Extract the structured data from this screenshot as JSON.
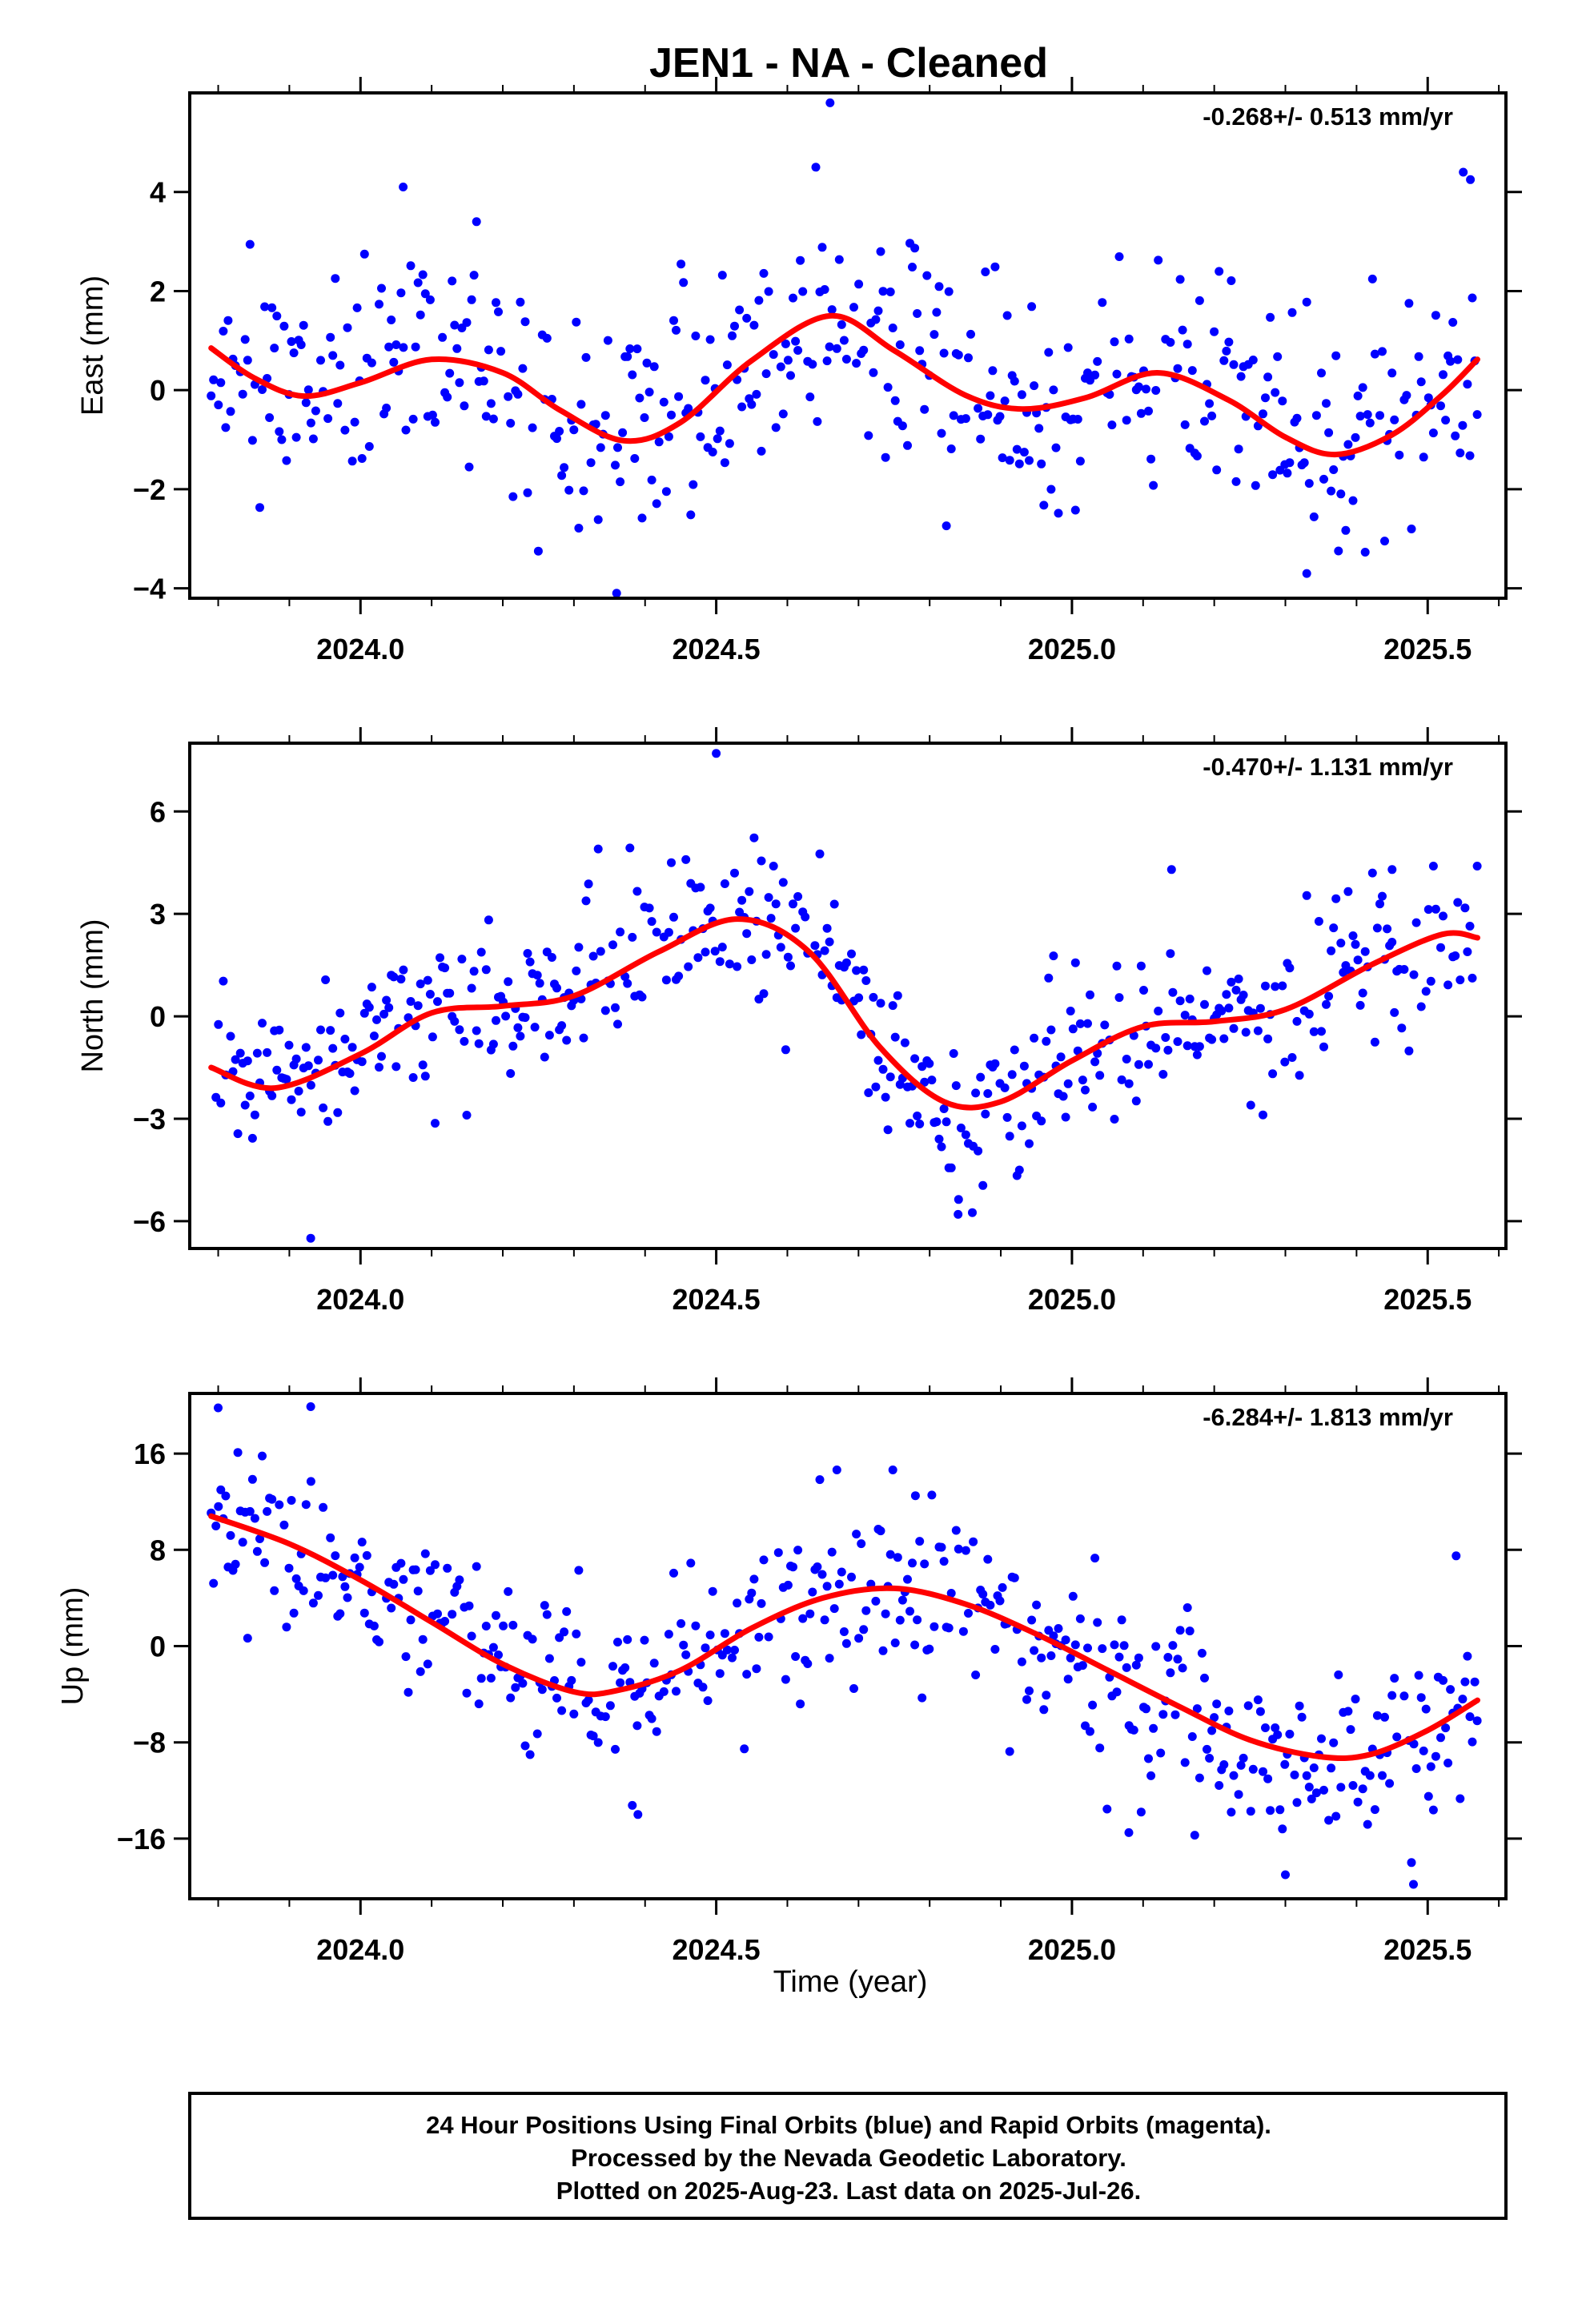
{
  "title": "JEN1  - NA - Cleaned",
  "xlabel": "Time (year)",
  "footer": {
    "lines": [
      "24 Hour Positions Using Final Orbits (blue) and Rapid Orbits (magenta).",
      "Processed by the Nevada Geodetic Laboratory.",
      "Plotted on 2025-Aug-23. Last data on 2025-Jul-26."
    ]
  },
  "colors": {
    "final_orbit_points": "#0000ff",
    "model_fit": "#ff0000",
    "frame": "#000000"
  },
  "chart_data": [
    {
      "type": "scatter",
      "panel": "east",
      "ylabel": "East (mm)",
      "rate": "-0.268+/- 0.513 mm/yr",
      "xlim": [
        2023.76,
        2025.61
      ],
      "ylim": [
        -4.2,
        6.0
      ],
      "yticks": [
        -4,
        -2,
        0,
        2,
        4
      ],
      "ytick_labels": [
        "−4",
        "−2",
        "0",
        "2",
        "4"
      ],
      "xticks": [
        2024.0,
        2024.5,
        2025.0,
        2025.5
      ],
      "xtick_labels": [
        "2024.0",
        "2024.5",
        "2025.0",
        "2025.5"
      ],
      "noise_sd": 1.1,
      "seed": 11,
      "fit": {
        "name": "model fit",
        "x": [
          2023.79,
          2023.85,
          2023.92,
          2024.0,
          2024.1,
          2024.2,
          2024.28,
          2024.37,
          2024.45,
          2024.55,
          2024.66,
          2024.75,
          2024.85,
          2024.93,
          2025.02,
          2025.12,
          2025.22,
          2025.3,
          2025.37,
          2025.45,
          2025.52,
          2025.57
        ],
        "y": [
          0.85,
          0.25,
          -0.12,
          0.15,
          0.62,
          0.35,
          -0.4,
          -1.02,
          -0.65,
          0.6,
          1.5,
          0.8,
          -0.1,
          -0.38,
          -0.15,
          0.35,
          -0.2,
          -0.95,
          -1.3,
          -0.9,
          -0.1,
          0.62
        ]
      },
      "outliers": [
        {
          "x": 2024.66,
          "y": 5.8
        },
        {
          "x": 2024.64,
          "y": 4.5
        },
        {
          "x": 2024.06,
          "y": 4.1
        },
        {
          "x": 2024.36,
          "y": -4.1
        },
        {
          "x": 2025.55,
          "y": 4.4
        },
        {
          "x": 2025.56,
          "y": 4.25
        },
        {
          "x": 2025.33,
          "y": -3.7
        },
        {
          "x": 2024.25,
          "y": -3.25
        }
      ]
    },
    {
      "type": "scatter",
      "panel": "north",
      "ylabel": "North (mm)",
      "rate": "-0.470+/- 1.131 mm/yr",
      "xlim": [
        2023.76,
        2025.61
      ],
      "ylim": [
        -6.8,
        8.0
      ],
      "yticks": [
        -6,
        -3,
        0,
        3,
        6
      ],
      "ytick_labels": [
        "−6",
        "−3",
        "0",
        "3",
        "6"
      ],
      "xticks": [
        2024.0,
        2024.5,
        2025.0,
        2025.5
      ],
      "xtick_labels": [
        "2024.0",
        "2024.5",
        "2025.0",
        "2025.5"
      ],
      "noise_sd": 1.2,
      "seed": 23,
      "fit": {
        "name": "model fit",
        "x": [
          2023.79,
          2023.88,
          2024.0,
          2024.1,
          2024.2,
          2024.3,
          2024.42,
          2024.53,
          2024.63,
          2024.73,
          2024.82,
          2024.9,
          2025.0,
          2025.1,
          2025.2,
          2025.3,
          2025.42,
          2025.52,
          2025.57
        ],
        "y": [
          -1.5,
          -2.1,
          -1.1,
          0.1,
          0.3,
          0.6,
          1.9,
          2.85,
          1.9,
          -0.9,
          -2.5,
          -2.5,
          -1.3,
          -0.3,
          -0.15,
          0.2,
          1.5,
          2.4,
          2.3
        ]
      },
      "outliers": [
        {
          "x": 2024.5,
          "y": 7.7
        },
        {
          "x": 2023.93,
          "y": -6.5
        },
        {
          "x": 2024.84,
          "y": -5.8
        },
        {
          "x": 2024.86,
          "y": -5.75
        },
        {
          "x": 2025.14,
          "y": 4.3
        },
        {
          "x": 2025.45,
          "y": 4.3
        }
      ]
    },
    {
      "type": "scatter",
      "panel": "up",
      "ylabel": "Up (mm)",
      "rate": "-6.284+/- 1.813 mm/yr",
      "xlim": [
        2023.76,
        2025.61
      ],
      "ylim": [
        -21.0,
        21.0
      ],
      "yticks": [
        -16,
        -8,
        0,
        8,
        16
      ],
      "ytick_labels": [
        "−16",
        "−8",
        "0",
        "8",
        "16"
      ],
      "xticks": [
        2024.0,
        2024.5,
        2025.0,
        2025.5
      ],
      "xtick_labels": [
        "2024.0",
        "2024.5",
        "2025.0",
        "2025.5"
      ],
      "noise_sd": 3.6,
      "seed": 37,
      "fit": {
        "name": "model fit",
        "x": [
          2023.79,
          2023.9,
          2024.0,
          2024.1,
          2024.2,
          2024.3,
          2024.36,
          2024.45,
          2024.55,
          2024.65,
          2024.75,
          2024.85,
          2024.95,
          2025.05,
          2025.15,
          2025.25,
          2025.35,
          2025.42,
          2025.5,
          2025.57
        ],
        "y": [
          10.8,
          8.5,
          5.5,
          2.0,
          -1.5,
          -3.8,
          -3.7,
          -2.0,
          1.5,
          4.0,
          4.8,
          3.5,
          1.0,
          -2.0,
          -5.0,
          -7.8,
          -9.2,
          -9.0,
          -7.0,
          -4.5
        ]
      },
      "outliers": [
        {
          "x": 2023.8,
          "y": 19.8
        },
        {
          "x": 2023.93,
          "y": 19.9
        },
        {
          "x": 2024.78,
          "y": 12.5
        },
        {
          "x": 2025.48,
          "y": -19.8
        },
        {
          "x": 2025.3,
          "y": -19.0
        },
        {
          "x": 2024.39,
          "y": -14.0
        },
        {
          "x": 2025.54,
          "y": 7.5
        },
        {
          "x": 2025.08,
          "y": -15.5
        }
      ]
    }
  ]
}
